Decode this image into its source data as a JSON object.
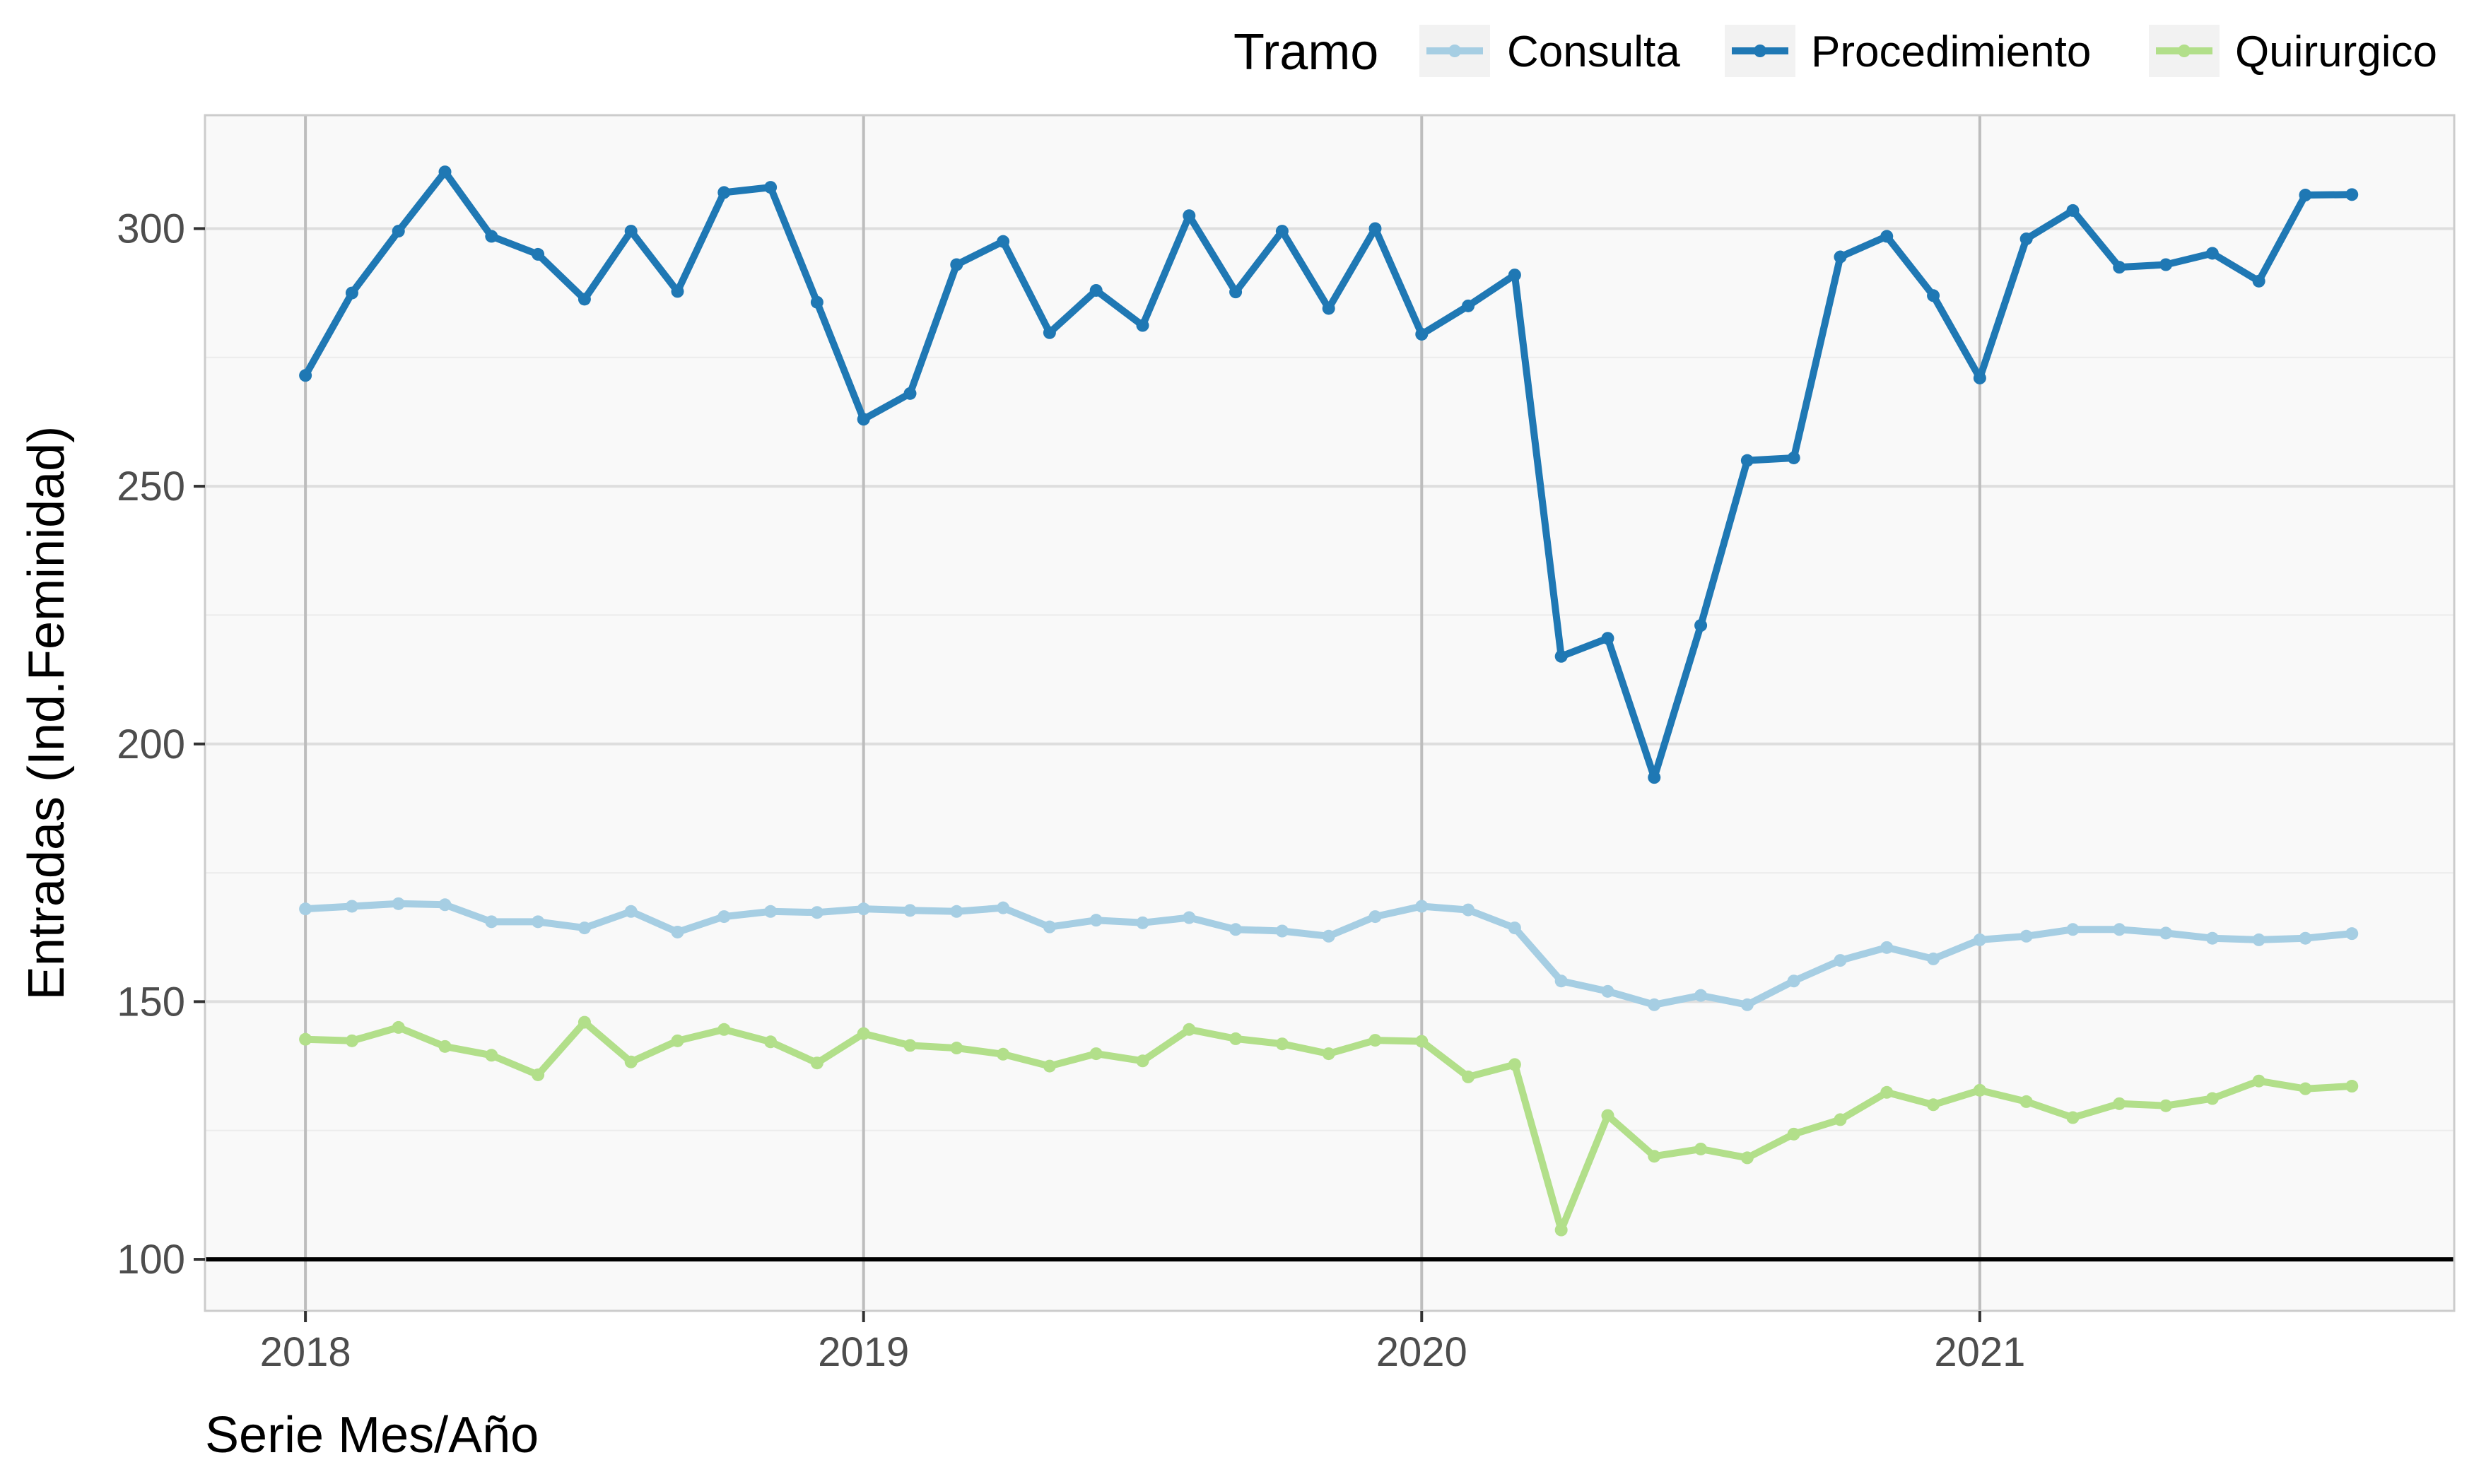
{
  "chart_data": {
    "type": "line",
    "xlabel": "Serie Mes/Año",
    "ylabel": "Entradas (Ind.Feminidad)",
    "x_ticks": [
      "2018",
      "2019",
      "2020",
      "2021"
    ],
    "y_ticks": [
      "100",
      "150",
      "200",
      "250",
      "300"
    ],
    "xlim": [
      2017.82,
      2021.85
    ],
    "ylim": [
      90,
      322
    ],
    "reference_line": 100,
    "grid": true,
    "legend": {
      "title": "Tramo",
      "position": "top-right"
    },
    "x": [
      "2018-01",
      "2018-02",
      "2018-03",
      "2018-04",
      "2018-05",
      "2018-06",
      "2018-07",
      "2018-08",
      "2018-09",
      "2018-10",
      "2018-11",
      "2018-12",
      "2019-01",
      "2019-02",
      "2019-03",
      "2019-04",
      "2019-05",
      "2019-06",
      "2019-07",
      "2019-08",
      "2019-09",
      "2019-10",
      "2019-11",
      "2019-12",
      "2020-01",
      "2020-02",
      "2020-03",
      "2020-04",
      "2020-05",
      "2020-06",
      "2020-07",
      "2020-08",
      "2020-09",
      "2020-10",
      "2020-11",
      "2020-12",
      "2021-01",
      "2021-02",
      "2021-03",
      "2021-04",
      "2021-05",
      "2021-06",
      "2021-07",
      "2021-08",
      "2021-09"
    ],
    "series": [
      {
        "name": "Consulta",
        "color": "#a6cee3",
        "values": [
          168,
          168.5,
          169,
          168.8,
          165.5,
          165.5,
          164.3,
          167.5,
          163.5,
          166.5,
          167.5,
          167.3,
          168,
          167.7,
          167.5,
          168.2,
          164.5,
          165.8,
          165.3,
          166.3,
          164,
          163.7,
          162.7,
          166.5,
          168.5,
          167.8,
          164.3,
          154,
          152,
          149.4,
          151.2,
          149.4,
          154,
          158,
          160.5,
          158.3,
          162,
          162.7,
          164,
          164,
          163.3,
          162.3,
          162,
          162.3,
          163.2
        ]
      },
      {
        "name": "Procedimiento",
        "color": "#1f78b4",
        "values": [
          271.5,
          287.5,
          299.5,
          311,
          298.5,
          295,
          286.3,
          299.5,
          287.8,
          307,
          308,
          285.7,
          263,
          268,
          293,
          297.5,
          279.8,
          288,
          281.2,
          302.5,
          287.7,
          299.5,
          284.5,
          300,
          279.5,
          285,
          291,
          217,
          220.5,
          193.5,
          223,
          255,
          255.5,
          294.5,
          298.5,
          287,
          271,
          298,
          303.5,
          292.5,
          293,
          295.2,
          289.8,
          306.5,
          306.6
        ]
      },
      {
        "name": "Quirurgico",
        "color": "#b2df8a",
        "values": [
          142.7,
          142.4,
          145,
          141.3,
          139.6,
          135.8,
          146,
          138.3,
          142.4,
          144.6,
          142.2,
          138.1,
          143.8,
          141.5,
          141,
          139.8,
          137.5,
          139.9,
          138.5,
          144.6,
          142.8,
          141.8,
          139.9,
          142.5,
          142.3,
          135.4,
          137.8,
          105.7,
          127.9,
          120,
          121.4,
          119.7,
          124.3,
          127.1,
          132.4,
          130,
          132.8,
          130.6,
          127.5,
          130.2,
          129.8,
          131.2,
          134.6,
          133.1,
          133.6
        ]
      }
    ]
  }
}
